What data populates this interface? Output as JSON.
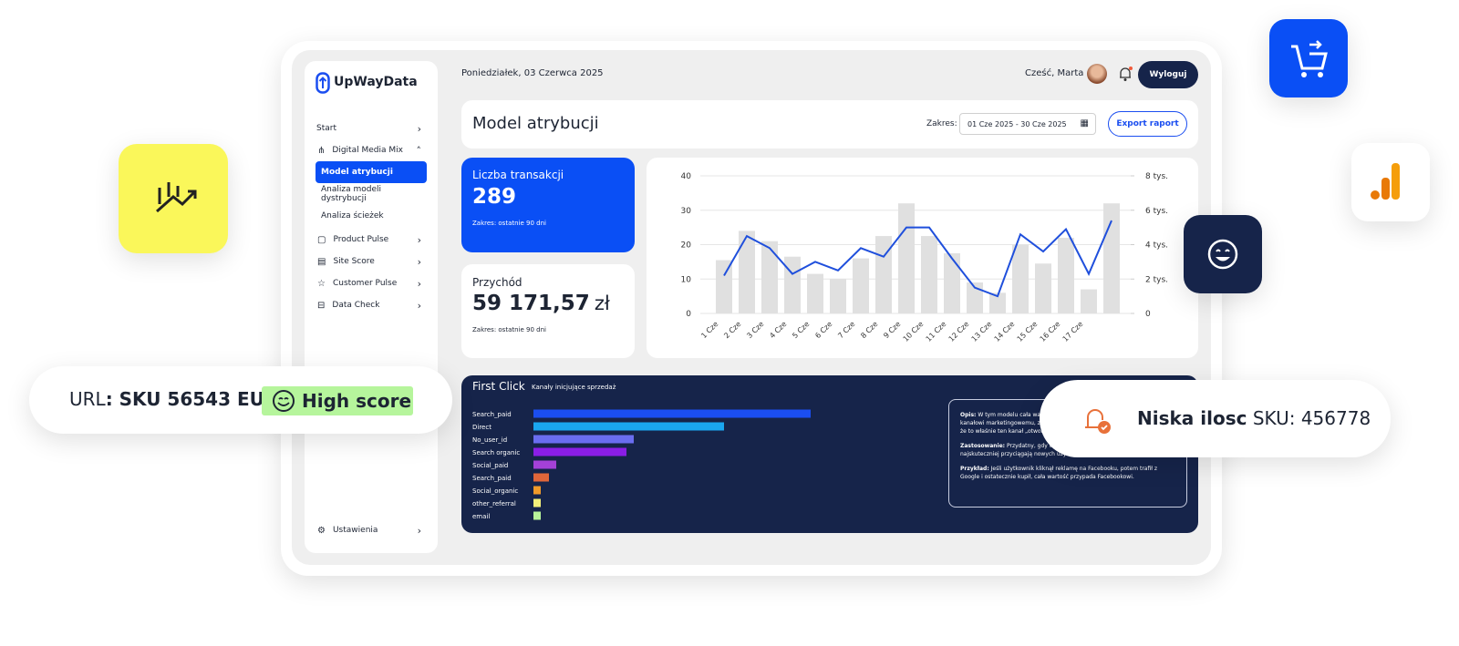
{
  "sidebar": {
    "brand": "UpWayData",
    "items": [
      "Start",
      "Digital Media Mix",
      "Model atrybucji",
      "Analiza modeli dystrybucji",
      "Analiza ścieżek",
      "Product Pulse",
      "Site Score",
      "Customer Pulse",
      "Data Check"
    ],
    "settings": "Ustawienia"
  },
  "header": {
    "date": "Poniedziałek, 03 Czerwca 2025",
    "greeting": "Cześć, Marta",
    "logout": "Wyloguj"
  },
  "title_bar": {
    "title": "Model atrybucji",
    "range_label": "Zakres:",
    "range_value": "01 Cze 2025 - 30 Cze 2025",
    "export": "Export raport"
  },
  "cards": [
    {
      "label": "Liczba transakcji",
      "value": "289",
      "note": "Zakres: ostatnie 90 dni"
    },
    {
      "label": "Przychód",
      "value": "59 171,57",
      "unit": "zł",
      "note": "Zakres: ostatnie 90 dni"
    }
  ],
  "chart_data": [
    {
      "type": "combo",
      "categories": [
        "1 Cze",
        "2 Cze",
        "3 Cze",
        "4 Cze",
        "5 Cze",
        "6 Cze",
        "7 Cze",
        "8 Cze",
        "9 Cze",
        "10 Cze",
        "11 Cze",
        "12 Cze",
        "13 Cze",
        "14 Cze",
        "15 Cze",
        "16 Cze",
        "17 Cze",
        null
      ],
      "series": [
        {
          "kind": "bar",
          "color": "#e0e0e0",
          "values": [
            15.5,
            24,
            21,
            16.5,
            11.5,
            10,
            16,
            22.5,
            32,
            22.5,
            17.5,
            9,
            6,
            20,
            14.5,
            22,
            7,
            32
          ]
        },
        {
          "kind": "line",
          "axis": "y2",
          "color": "#1f4fdc",
          "values": [
            2200,
            4500,
            3800,
            2300,
            3000,
            2500,
            3800,
            3300,
            5000,
            5000,
            3200,
            1500,
            1000,
            4600,
            3600,
            4900,
            2300,
            5400
          ]
        }
      ],
      "ylim": [
        0,
        40
      ],
      "yticks": [
        0,
        10,
        20,
        30,
        40
      ],
      "y2lim": [
        0,
        8000
      ],
      "y2ticks": [
        0,
        {
          "value": 2000,
          "label": "2 tys."
        },
        {
          "value": 4000,
          "label": "4 tys."
        },
        {
          "value": 6000,
          "label": "6 tys."
        },
        {
          "value": 8000,
          "label": "8 tys."
        }
      ],
      "grid": true
    },
    {
      "type": "hbar",
      "title": "First Click",
      "subtitle": "Kanały inicjujące sprzedaż",
      "categories": [
        "Search_paid",
        "Direct",
        "No_user_id",
        "Search organic",
        "Social_paid",
        "Search_paid",
        "Social_organic",
        "other_referral",
        "email"
      ],
      "values": [
        304,
        209,
        110,
        102,
        25,
        17,
        8,
        8,
        8
      ],
      "colors": [
        "#1b4ef0",
        "#1aa6f0",
        "#6a6df0",
        "#8a1ee6",
        "#a441d8",
        "#e0663a",
        "#f09a2a",
        "#f3f07a",
        "#b7f39a"
      ]
    }
  ],
  "description": [
    {
      "label": "Opis:",
      "text": "W tym modelu cała wartość konwersji przypisywana jest pierwszemu kanałowi marketingowemu, z którym użytkownik miał kontakt. Model zakłada, że to właśnie ten kanał „otworzył drzwi” do dalszego zaangażowania."
    },
    {
      "label": "Zastosowanie:",
      "text": "Przydatny, gdy chcesz analizować, które kanały najskuteczniej przyciągają nowych użytkowników i inicjują ścieżkę zakupową."
    },
    {
      "label": "Przykład:",
      "text": "Jeśli użytkownik kliknął reklamę na Facebooku, potem trafił z Google i ostatecznie kupił, cała wartość przypada Facebookowi."
    }
  ],
  "badges": {
    "url_label": "URL",
    "url_value": ": SKU 56543 EU",
    "score": "High score",
    "stock_label": "Niska ilosc",
    "stock_value": " SKU: 456778"
  }
}
